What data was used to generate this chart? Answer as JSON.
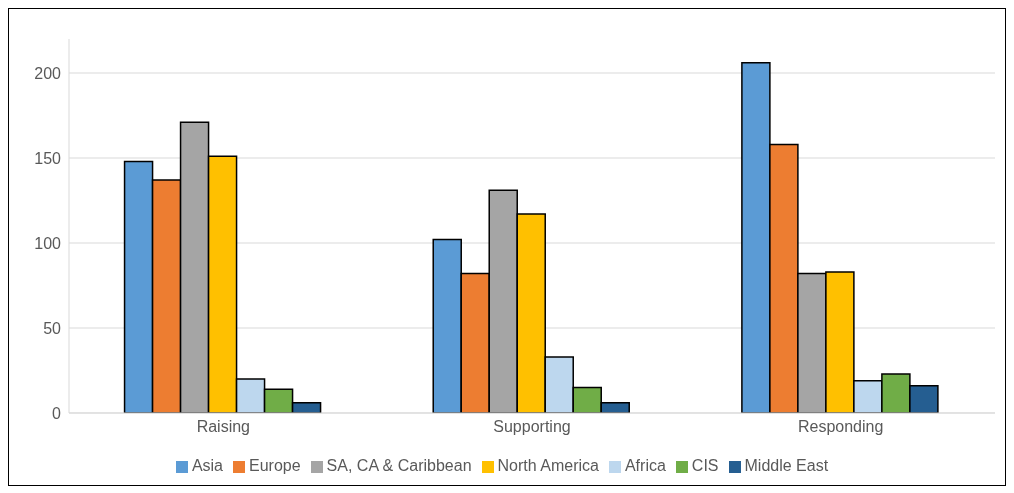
{
  "chart_data": {
    "type": "bar",
    "categories": [
      "Raising",
      "Supporting",
      "Responding"
    ],
    "series": [
      {
        "name": "Asia",
        "color": "#5b9bd5",
        "values": [
          148,
          102,
          206
        ]
      },
      {
        "name": "Europe",
        "color": "#ed7d31",
        "values": [
          137,
          82,
          158
        ]
      },
      {
        "name": "SA, CA & Caribbean",
        "color": "#a5a5a5",
        "values": [
          171,
          131,
          82
        ]
      },
      {
        "name": "North America",
        "color": "#ffc000",
        "values": [
          151,
          117,
          83
        ]
      },
      {
        "name": "Africa",
        "color": "#bdd7ee",
        "values": [
          20,
          33,
          19
        ]
      },
      {
        "name": "CIS",
        "color": "#70ad47",
        "values": [
          14,
          15,
          23
        ]
      },
      {
        "name": "Middle East",
        "color": "#255e91",
        "values": [
          6,
          6,
          16
        ]
      }
    ],
    "ylim": [
      0,
      220
    ],
    "yticks": [
      0,
      50,
      100,
      150,
      200
    ],
    "grid": "y",
    "legend": "bottom"
  }
}
